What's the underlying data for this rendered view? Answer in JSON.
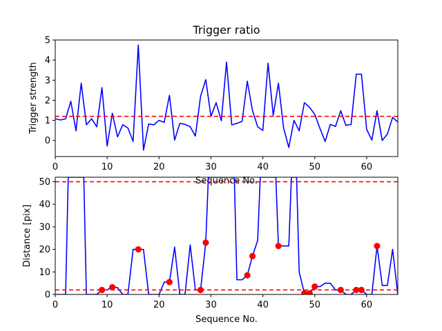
{
  "chart_data": [
    {
      "type": "line",
      "title": "Trigger ratio",
      "xlabel": "Sequence No.",
      "ylabel": "Trigger strength",
      "xlim": [
        0,
        66
      ],
      "ylim": [
        -0.8,
        5
      ],
      "xticks": [
        0,
        10,
        20,
        30,
        40,
        50,
        60
      ],
      "yticks": [
        0,
        1,
        2,
        3,
        4,
        5
      ],
      "grid": false,
      "series": [
        {
          "color": "#0000ff",
          "x": [
            0,
            1,
            2,
            3,
            4,
            5,
            6,
            7,
            8,
            9,
            10,
            11,
            12,
            13,
            14,
            15,
            16,
            17,
            18,
            19,
            20,
            21,
            22,
            23,
            24,
            25,
            26,
            27,
            28,
            29,
            30,
            31,
            32,
            33,
            34,
            35,
            36,
            37,
            38,
            39,
            40,
            41,
            42,
            43,
            44,
            45,
            46,
            47,
            48,
            49,
            50,
            51,
            52,
            53,
            54,
            55,
            56,
            57,
            58,
            59,
            60,
            61,
            62,
            63,
            64,
            65,
            66
          ],
          "y": [
            1.08,
            1.02,
            1.08,
            1.95,
            0.48,
            2.85,
            0.78,
            1.08,
            0.68,
            2.63,
            -0.28,
            1.35,
            0.18,
            0.78,
            0.62,
            -0.05,
            4.75,
            -0.48,
            0.82,
            0.78,
            1.0,
            0.9,
            2.25,
            0.02,
            0.85,
            0.8,
            0.68,
            0.22,
            2.2,
            3.03,
            1.2,
            1.88,
            0.98,
            3.9,
            0.78,
            0.85,
            0.95,
            2.95,
            1.5,
            0.68,
            0.5,
            3.85,
            1.25,
            2.85,
            0.62,
            -0.35,
            1.0,
            0.48,
            1.88,
            1.65,
            1.3,
            0.6,
            -0.05,
            0.8,
            0.7,
            1.48,
            0.75,
            0.8,
            3.3,
            3.3,
            0.55,
            0.02,
            1.48,
            0.0,
            0.32,
            1.15,
            0.92
          ]
        }
      ],
      "reference_lines": [
        {
          "y": 1.2,
          "color": "#ff0000",
          "style": "dashed"
        }
      ]
    },
    {
      "type": "line",
      "title": "",
      "xlabel": "Sequence No.",
      "ylabel": "Distance [pix]",
      "xlim": [
        0,
        66
      ],
      "ylim": [
        0,
        52
      ],
      "xticks": [
        0,
        10,
        20,
        30,
        40,
        50,
        60
      ],
      "yticks": [
        0,
        10,
        20,
        30,
        40,
        50
      ],
      "grid": false,
      "series": [
        {
          "color": "#0000ff",
          "x": [
            0,
            1,
            2,
            2.5,
            5.5,
            6,
            7,
            8,
            9,
            10,
            11,
            12,
            13,
            14,
            15,
            16,
            17,
            18,
            19,
            20,
            21,
            22,
            23,
            24,
            25,
            26,
            27,
            28,
            29,
            29.5,
            34.5,
            35,
            36,
            37,
            38,
            39,
            39.5,
            42.5,
            43,
            44,
            45,
            45.5,
            46.5,
            47,
            48,
            49,
            50,
            51,
            52,
            53,
            54,
            55,
            56,
            57,
            58,
            59,
            60,
            61,
            62,
            63,
            64,
            65,
            66
          ],
          "y": [
            0,
            0,
            0,
            52,
            52,
            0,
            0,
            0,
            2,
            2,
            3.5,
            3,
            0,
            0,
            20,
            20,
            20,
            0,
            0,
            0,
            5.5,
            5.5,
            21,
            0,
            0,
            22,
            2,
            2,
            23,
            52,
            52,
            6.5,
            6.5,
            8.5,
            17,
            24,
            52,
            52,
            21.5,
            21.5,
            21.5,
            52,
            52,
            10,
            0.5,
            0.5,
            3.5,
            3.5,
            5,
            5,
            2,
            2,
            0,
            0,
            2,
            2,
            0,
            0,
            21.5,
            4,
            4,
            20,
            0
          ]
        },
        {
          "type": "scatter",
          "color": "#ff0000",
          "x": [
            9,
            11,
            16,
            22,
            28,
            29,
            37,
            38,
            43,
            48,
            49,
            50,
            55,
            58,
            59,
            62
          ],
          "y": [
            2,
            3.2,
            20,
            5.5,
            2,
            23,
            8.5,
            17,
            21.5,
            0.5,
            0.5,
            3.5,
            2,
            2,
            2,
            21.5
          ]
        }
      ],
      "reference_lines": [
        {
          "y": 50,
          "color": "#ff0000",
          "style": "dashed"
        },
        {
          "y": 2,
          "color": "#ff0000",
          "style": "dashed"
        }
      ]
    }
  ]
}
